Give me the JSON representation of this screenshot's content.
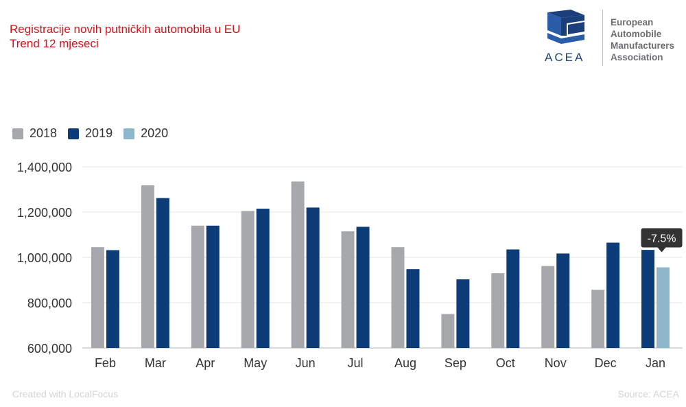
{
  "header": {
    "title_line1": "Registracije novih putničkih automobila u EU",
    "title_line2": "Trend 12 mjeseci"
  },
  "logo": {
    "wordmark": "ACEA",
    "line1": "European",
    "line2": "Automobile",
    "line3": "Manufacturers",
    "line4": "Association"
  },
  "footer": {
    "created_with": "Created with LocalFocus",
    "source": "Source:  ACEA"
  },
  "colors": {
    "2018": "#a6a8ab",
    "2019": "#0d3d78",
    "2020": "#8db8cc",
    "tooltip_bg": "#333333"
  },
  "chart_data": {
    "type": "bar",
    "categories": [
      "Feb",
      "Mar",
      "Apr",
      "May",
      "Jun",
      "Jul",
      "Aug",
      "Sep",
      "Oct",
      "Nov",
      "Dec",
      "Jan"
    ],
    "series": [
      {
        "name": "2018",
        "values": [
          1045000,
          1318000,
          1140000,
          1205000,
          1335000,
          1115000,
          1045000,
          750000,
          930000,
          962000,
          857000,
          null
        ]
      },
      {
        "name": "2019",
        "values": [
          1032000,
          1262000,
          1140000,
          1215000,
          1220000,
          1135000,
          948000,
          903000,
          1035000,
          1017000,
          1065000,
          1033000
        ]
      },
      {
        "name": "2020",
        "values": [
          null,
          null,
          null,
          null,
          null,
          null,
          null,
          null,
          null,
          null,
          null,
          956000
        ]
      }
    ],
    "ylim": [
      600000,
      1400000
    ],
    "yticks": [
      "600,000",
      "800,000",
      "1,000,000",
      "1,200,000",
      "1,400,000"
    ],
    "ytick_values": [
      600000,
      800000,
      1000000,
      1200000,
      1400000
    ],
    "grid": true,
    "legend_position": "top-left",
    "annotation": {
      "text": "-7.5%",
      "category": "Jan"
    }
  }
}
